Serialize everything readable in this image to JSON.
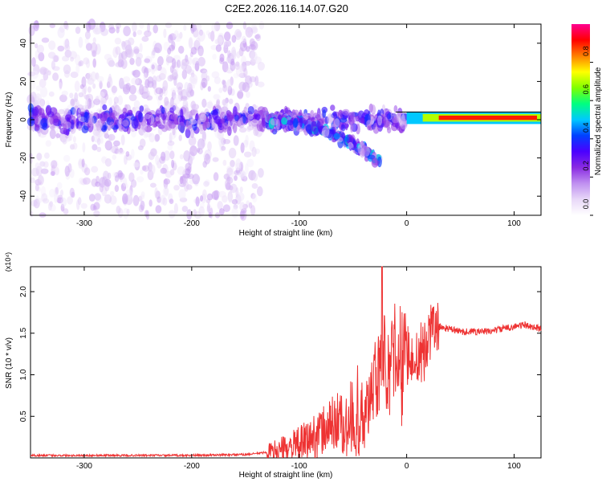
{
  "figure_title": "C2E2.2026.116.14.07.G20",
  "chart_data": [
    {
      "type": "heatmap",
      "title": "C2E2.2026.116.14.07.G20",
      "xlabel": "Height of straight line (km)",
      "ylabel": "Frequency (Hz)",
      "xlim": [
        -350,
        125
      ],
      "ylim": [
        -50,
        50
      ],
      "x_ticks": [
        -300,
        -200,
        -100,
        0,
        100
      ],
      "y_ticks": [
        -40,
        -20,
        0,
        20,
        40
      ],
      "x_tick_labels": [
        "-300",
        "-200",
        "-100",
        "0",
        "100"
      ],
      "y_tick_labels": [
        "-40",
        "-20",
        "0",
        "20",
        "40"
      ],
      "colorbar": {
        "label": "Normalized spectral amplitude",
        "range": [
          0,
          1
        ],
        "ticks": [
          0.0,
          0.2,
          0.4,
          0.6,
          0.8
        ],
        "tick_labels": [
          "0.0",
          "0.2",
          "0.4",
          "0.6",
          "0.8"
        ],
        "colors": [
          "#ffffff",
          "#e8d8f8",
          "#c090f0",
          "#8a2be2",
          "#4b00ff",
          "#0040ff",
          "#00c8ff",
          "#00ff80",
          "#80ff00",
          "#ffff00",
          "#ff8000",
          "#ff0000",
          "#ff0090"
        ]
      },
      "regions": [
        {
          "x_range": [
            -350,
            -135
          ],
          "freq_range": [
            -50,
            50
          ],
          "amplitude": 0.12
        },
        {
          "x_range": [
            -350,
            0
          ],
          "freq_center": 0,
          "freq_halfwidth": 6,
          "amplitude": 0.3
        },
        {
          "x_range": [
            -130,
            -25
          ],
          "freq_center_start": 0,
          "freq_center_end": -22,
          "amplitude": 0.4
        },
        {
          "x_range": [
            0,
            125
          ],
          "freq_center": 1,
          "freq_halfwidth": 2,
          "amplitude": 0.9
        }
      ]
    },
    {
      "type": "line",
      "xlabel": "Height of straight line (km)",
      "ylabel": "SNR (10 * v/v)",
      "y_scale_label": "(x10⁴)",
      "xlim": [
        -350,
        125
      ],
      "ylim": [
        0,
        2.3
      ],
      "x_ticks": [
        -300,
        -200,
        -100,
        0,
        100
      ],
      "y_ticks": [
        0.5,
        1.0,
        1.5,
        2.0
      ],
      "x_tick_labels": [
        "-300",
        "-200",
        "-100",
        "0",
        "100"
      ],
      "y_tick_labels": [
        "0.5",
        "1.0",
        "1.5",
        "2.0"
      ],
      "series": [
        {
          "color": "#ee3333",
          "x": [
            -350,
            -300,
            -250,
            -200,
            -150,
            -120,
            -100,
            -80,
            -60,
            -40,
            -30,
            -25,
            -20,
            -10,
            0,
            10,
            20,
            30,
            50,
            75,
            100,
            110,
            125
          ],
          "y": [
            0.03,
            0.03,
            0.03,
            0.03,
            0.04,
            0.08,
            0.15,
            0.3,
            0.5,
            0.8,
            1.1,
            1.3,
            1.4,
            1.45,
            1.35,
            1.42,
            1.48,
            1.58,
            1.52,
            1.52,
            1.58,
            1.6,
            1.55
          ]
        }
      ],
      "spike_peak": {
        "x": -23,
        "y": 2.3
      }
    }
  ]
}
